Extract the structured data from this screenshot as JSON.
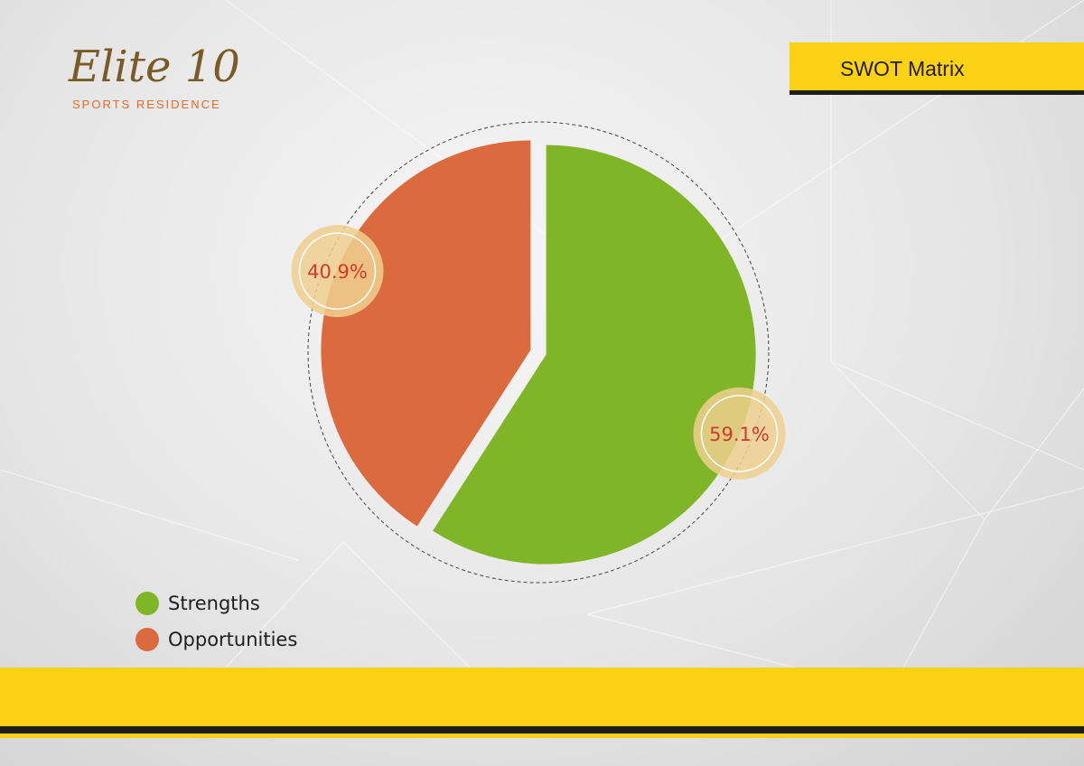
{
  "logo": {
    "main": "Elite 10",
    "sub": "SPORTS RESIDENCE"
  },
  "header": {
    "title": "SWOT Matrix"
  },
  "colors": {
    "strengths": "#7fb526",
    "opportunities": "#db6a3f",
    "badge": "#efd08e",
    "badge_text": "#d13a2a",
    "banner": "#fdd114",
    "dark": "#1e1e1e"
  },
  "chart_data": {
    "type": "pie",
    "title": "",
    "slices": [
      {
        "label": "Strengths",
        "value": 59.1,
        "display": "59.1%",
        "color": "#7fb526"
      },
      {
        "label": "Opportunities",
        "value": 40.9,
        "display": "40.9%",
        "color": "#db6a3f"
      }
    ],
    "start_angle": 0,
    "direction": "clockwise",
    "legend_position": "bottom-left"
  },
  "legend": {
    "items": [
      {
        "label": "Strengths",
        "color": "#7fb526"
      },
      {
        "label": "Opportunities",
        "color": "#db6a3f"
      }
    ]
  }
}
